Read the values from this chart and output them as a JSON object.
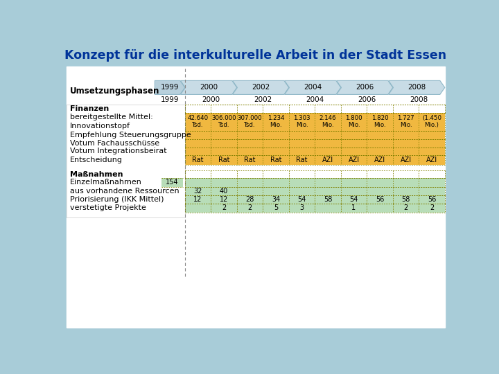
{
  "title": "Konzept für die interkulturelle Arbeit in der Stadt Essen",
  "title_color": "#003399",
  "bg_outer": "#a8ccd8",
  "bg_inner": "#ffffff",
  "arrow_fill_1999": "#b8d0dc",
  "arrow_fill_rest": "#c8dce6",
  "arrow_edge": "#90b8c8",
  "orange_bg": "#f0b840",
  "green_bg": "#b8ddb8",
  "dot_color": "#808000",
  "finanzen_vals": [
    "42.640\nTsd.",
    "306.000\nTsd.",
    "307.000\nTsd.",
    "1.234\nMio.",
    "1.303\nMio.",
    "2.146\nMio.",
    "1.800\nMio.",
    "1.820\nMio.",
    "1.727\nMio.",
    "(1.450\nMio.)"
  ],
  "entscheidung_vals": [
    "Rat",
    "Rat",
    "Rat",
    "Rat",
    "Rat",
    "AZI",
    "AZI",
    "AZI",
    "AZI",
    "AZI"
  ],
  "aus_vorh_vals": [
    "32",
    "40",
    "",
    "",
    "",
    "",
    "",
    "",
    "",
    ""
  ],
  "priorisierung_vals": [
    "12",
    "12",
    "28",
    "34",
    "54",
    "58",
    "54",
    "56",
    "58",
    "56"
  ],
  "verstetigte_vals": [
    "",
    "2",
    "2",
    "5",
    "3",
    "",
    "1",
    "",
    "2",
    "2"
  ],
  "einzelmassnahmen_val": "154"
}
